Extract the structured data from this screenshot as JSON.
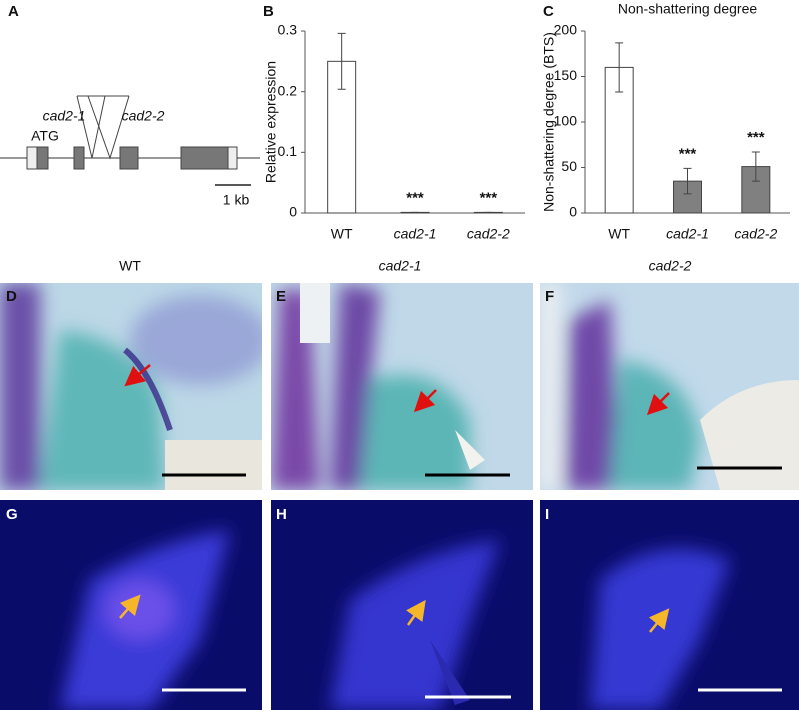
{
  "chart_data": [
    {
      "type": "bar",
      "panel": "B",
      "ylabel": "Relative expression",
      "categories": [
        "WT",
        "cad2-1",
        "cad2-2"
      ],
      "values": [
        0.25,
        0.001,
        0.001
      ],
      "errors": [
        0.046,
        0,
        0
      ],
      "colors": [
        "#ffffff",
        "#ffffff",
        "#ffffff"
      ],
      "significance": [
        null,
        "***",
        "***"
      ],
      "ylim": [
        0,
        0.3
      ],
      "yticks": [
        0,
        0.1,
        0.2,
        0.3
      ]
    },
    {
      "type": "bar",
      "panel": "C",
      "title": "Non-shattering degree",
      "ylabel": "Non-shattering degree (BTS)",
      "categories": [
        "WT",
        "cad2-1",
        "cad2-2"
      ],
      "values": [
        160,
        35,
        51
      ],
      "errors": [
        27,
        14,
        16
      ],
      "colors": [
        "#ffffff",
        "#808080",
        "#808080"
      ],
      "significance": [
        null,
        "***",
        "***"
      ],
      "ylim": [
        0,
        200
      ],
      "yticks": [
        0,
        50,
        100,
        150,
        200
      ]
    }
  ],
  "panel_a": {
    "panel": "A",
    "start_codon": "ATG",
    "alleles": [
      "cad2-1",
      "cad2-2"
    ],
    "scale_bar": "1 kb"
  },
  "micrographs": {
    "columns": [
      "WT",
      "cad2-1",
      "cad2-2"
    ],
    "panels": [
      "D",
      "E",
      "F",
      "G",
      "H",
      "I"
    ]
  }
}
